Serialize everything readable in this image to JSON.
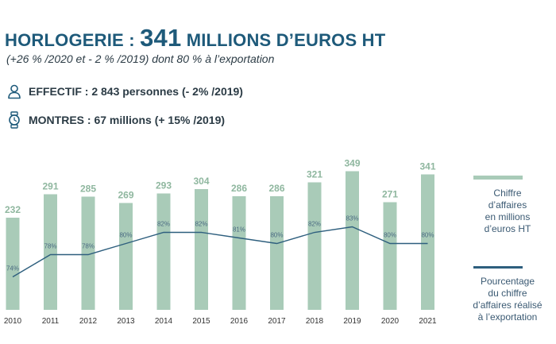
{
  "header": {
    "title_prefix": "HORLOGERIE : ",
    "title_value": "341",
    "title_suffix": " MILLIONS D’EUROS HT",
    "subtitle": "(+26 % /2020 et - 2 % /2019) dont 80 % à l’exportation"
  },
  "info": {
    "effectif": {
      "label": "EFFECTIF : 2 843 personnes (- 2% /2019)",
      "icon": "person-icon"
    },
    "montres": {
      "label": "MONTRES : 67 millions (+ 15% /2019)",
      "icon": "watch-icon"
    }
  },
  "colors": {
    "title": "#1e5a7a",
    "bar": "#a9cbb8",
    "bar_label": "#8fb79f",
    "line": "#2e5f7e",
    "line_label": "#4a6a82",
    "legend_text": "#3b5a73"
  },
  "chart_data": {
    "type": "bar",
    "categories": [
      "2010",
      "2011",
      "2012",
      "2013",
      "2014",
      "2015",
      "2016",
      "2017",
      "2018",
      "2019",
      "2020",
      "2021"
    ],
    "series": [
      {
        "name": "Chiffre d’affaires en millions d’euros HT",
        "type": "bar",
        "values": [
          232,
          291,
          285,
          269,
          293,
          304,
          286,
          286,
          321,
          349,
          271,
          341
        ],
        "labels": [
          "232",
          "291",
          "285",
          "269",
          "293",
          "304",
          "286",
          "286",
          "321",
          "349",
          "271",
          "341"
        ]
      },
      {
        "name": "Pourcentage du chiffre d’affaires réalisé à l’exportation",
        "type": "line",
        "values": [
          74,
          78,
          78,
          80,
          82,
          82,
          81,
          80,
          82,
          83,
          80,
          80
        ],
        "labels": [
          "74%",
          "78%",
          "78%",
          "80%",
          "82%",
          "82%",
          "81%",
          "80%",
          "82%",
          "83%",
          "80%",
          "80%"
        ]
      }
    ],
    "legend": [
      {
        "text": "Chiffre d’affaires en millions d’euros HT",
        "lines": [
          "Chiffre",
          "d’affaires",
          "en millions",
          "d’euros HT"
        ]
      },
      {
        "text": "Pourcentage du chiffre d’affaires réalisé à l’exportation",
        "lines": [
          "Pourcentage",
          "du chiffre",
          "d’affaires réalisé",
          "à l’exportation"
        ]
      }
    ],
    "legend_position": "right",
    "grid": false
  }
}
